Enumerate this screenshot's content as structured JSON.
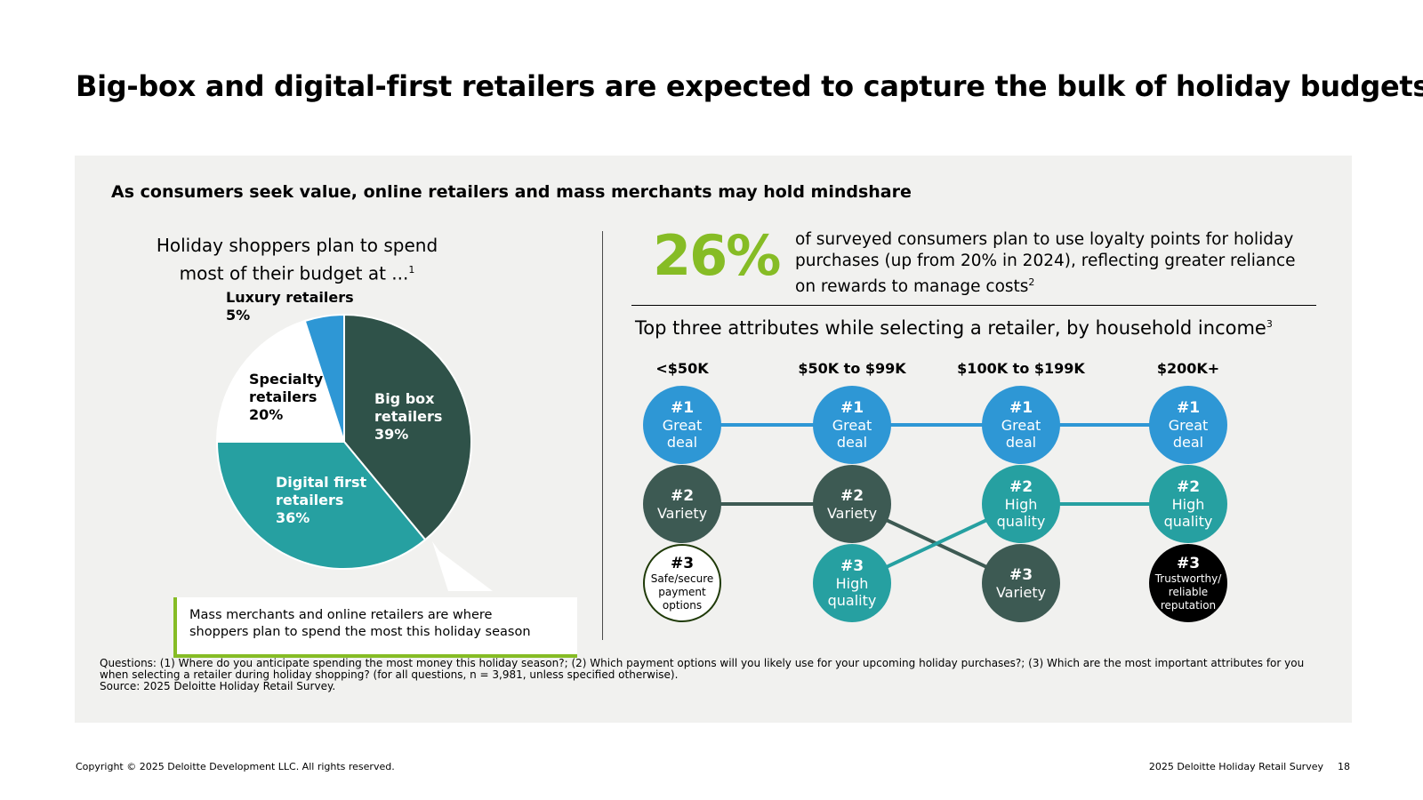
{
  "title": "Big-box and digital-first retailers are expected to capture the bulk of holiday budgets",
  "subtitle": "As consumers seek value, online retailers and mass merchants may hold mindshare",
  "pie_heading": "Holiday shoppers plan to spend most of their budget at ...",
  "pie_heading_sup": "1",
  "chart_data": [
    {
      "type": "pie",
      "categories": [
        "Big box retailers",
        "Digital first retailers",
        "Specialty retailers",
        "Luxury retailers"
      ],
      "values": [
        39,
        36,
        20,
        5
      ],
      "value_labels": [
        "39%",
        "36%",
        "20%",
        "5%"
      ],
      "colors": [
        "#2f5249",
        "#26a0a1",
        "#ffffff",
        "#2e97d5"
      ]
    }
  ],
  "pie_labels": {
    "big_box": {
      "name_line1": "Big box",
      "name_line2": "retailers",
      "value": "39%"
    },
    "digital": {
      "name_line1": "Digital first",
      "name_line2": "retailers",
      "value": "36%"
    },
    "specialty": {
      "name_line1": "Specialty",
      "name_line2": "retailers",
      "value": "20%"
    },
    "luxury": {
      "name_line1": "Luxury retailers",
      "value": "5%"
    }
  },
  "callout": "Mass merchants and online retailers are where shoppers plan to spend the most this holiday season",
  "stat": {
    "value": "26%",
    "text": "of surveyed consumers plan to use loyalty points for holiday purchases (up from 20% in 2024), reflecting greater reliance on rewards to manage costs",
    "sup": "2"
  },
  "attributes": {
    "heading": "Top three attributes while selecting a retailer, by household income",
    "heading_sup": "3",
    "incomes": [
      "<$50K",
      "$50K to $99K",
      "$100K to $199K",
      "$200K+"
    ],
    "ranks": [
      "#1",
      "#2",
      "#3"
    ],
    "columns": [
      [
        {
          "label": [
            "Great",
            "deal"
          ],
          "key": "deal"
        },
        {
          "label": [
            "Variety"
          ],
          "key": "variety"
        },
        {
          "label": [
            "Safe/secure",
            "payment",
            "options"
          ],
          "key": "safe"
        }
      ],
      [
        {
          "label": [
            "Great",
            "deal"
          ],
          "key": "deal"
        },
        {
          "label": [
            "Variety"
          ],
          "key": "variety"
        },
        {
          "label": [
            "High",
            "quality"
          ],
          "key": "quality"
        }
      ],
      [
        {
          "label": [
            "Great",
            "deal"
          ],
          "key": "deal"
        },
        {
          "label": [
            "High",
            "quality"
          ],
          "key": "quality"
        },
        {
          "label": [
            "Variety"
          ],
          "key": "variety"
        }
      ],
      [
        {
          "label": [
            "Great",
            "deal"
          ],
          "key": "deal"
        },
        {
          "label": [
            "High",
            "quality"
          ],
          "key": "quality"
        },
        {
          "label": [
            "Trustworthy/",
            "reliable",
            "reputation"
          ],
          "key": "trust"
        }
      ]
    ],
    "colors": {
      "deal": "#2e97d5",
      "variety": "#3d5a53",
      "quality": "#26a0a1",
      "safe": "#ffffff",
      "trust": "#000000"
    }
  },
  "footnote": {
    "questions": "Questions: (1) Where do you anticipate spending the most money this holiday season?; (2) Which payment options will you likely use for your upcoming holiday purchases?; (3) Which are the most important attributes for you when selecting a retailer during holiday shopping? (for all questions, n = 3,981, unless specified otherwise).",
    "source": "Source: 2025 Deloitte Holiday Retail Survey."
  },
  "footer": {
    "copyright": "Copyright © 2025 Deloitte Development LLC. All rights reserved.",
    "report": "2025 Deloitte Holiday Retail Survey",
    "page": "18"
  }
}
